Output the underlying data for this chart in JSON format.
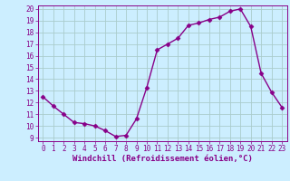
{
  "x": [
    0,
    1,
    2,
    3,
    4,
    5,
    6,
    7,
    8,
    9,
    10,
    11,
    12,
    13,
    14,
    15,
    16,
    17,
    18,
    19,
    20,
    21,
    22,
    23
  ],
  "y": [
    12.5,
    11.7,
    11.0,
    10.3,
    10.2,
    10.0,
    9.6,
    9.1,
    9.2,
    10.6,
    13.3,
    16.5,
    17.0,
    17.5,
    18.6,
    18.8,
    19.1,
    19.3,
    19.8,
    20.0,
    18.5,
    14.5,
    12.9,
    11.6
  ],
  "color": "#880088",
  "bg_color": "#cceeff",
  "grid_color": "#aacccc",
  "xlabel": "Windchill (Refroidissement éolien,°C)",
  "ylim_min": 9,
  "ylim_max": 20,
  "xlim_min": 0,
  "xlim_max": 23,
  "yticks": [
    9,
    10,
    11,
    12,
    13,
    14,
    15,
    16,
    17,
    18,
    19,
    20
  ],
  "xticks": [
    0,
    1,
    2,
    3,
    4,
    5,
    6,
    7,
    8,
    9,
    10,
    11,
    12,
    13,
    14,
    15,
    16,
    17,
    18,
    19,
    20,
    21,
    22,
    23
  ],
  "marker": "D",
  "markersize": 2.5,
  "linewidth": 1.0,
  "tick_fontsize": 5.5,
  "xlabel_fontsize": 6.5
}
